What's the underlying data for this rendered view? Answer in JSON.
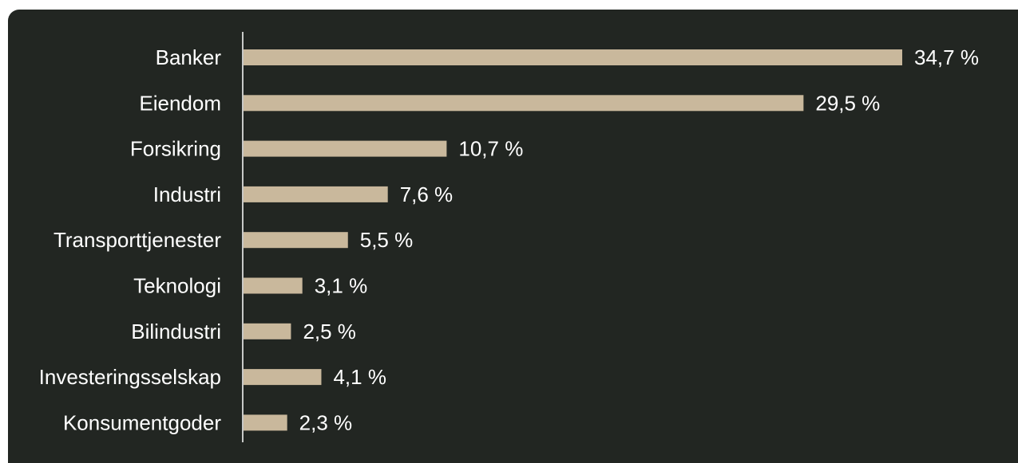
{
  "chart_data": {
    "type": "bar",
    "orientation": "horizontal",
    "categories": [
      "Banker",
      "Eiendom",
      "Forsikring",
      "Industri",
      "Transporttjenester",
      "Teknologi",
      "Bilindustri",
      "Investeringsselskap",
      "Konsumentgoder"
    ],
    "values": [
      34.7,
      29.5,
      10.7,
      7.6,
      5.5,
      3.1,
      2.5,
      4.1,
      2.3
    ],
    "value_labels": [
      "34,7 %",
      "29,5 %",
      "10,7 %",
      "7,6 %",
      "5,5 %",
      "3,1 %",
      "2,5 %",
      "4,1 %",
      "2,3 %"
    ],
    "xlim": [
      0,
      34.7
    ],
    "grid": false,
    "legend": "none",
    "title": "",
    "xlabel": "",
    "ylabel": ""
  },
  "colors": {
    "background": "#222622",
    "bar": "#c9b89c",
    "text": "#ffffff",
    "axis": "#ffffff"
  }
}
